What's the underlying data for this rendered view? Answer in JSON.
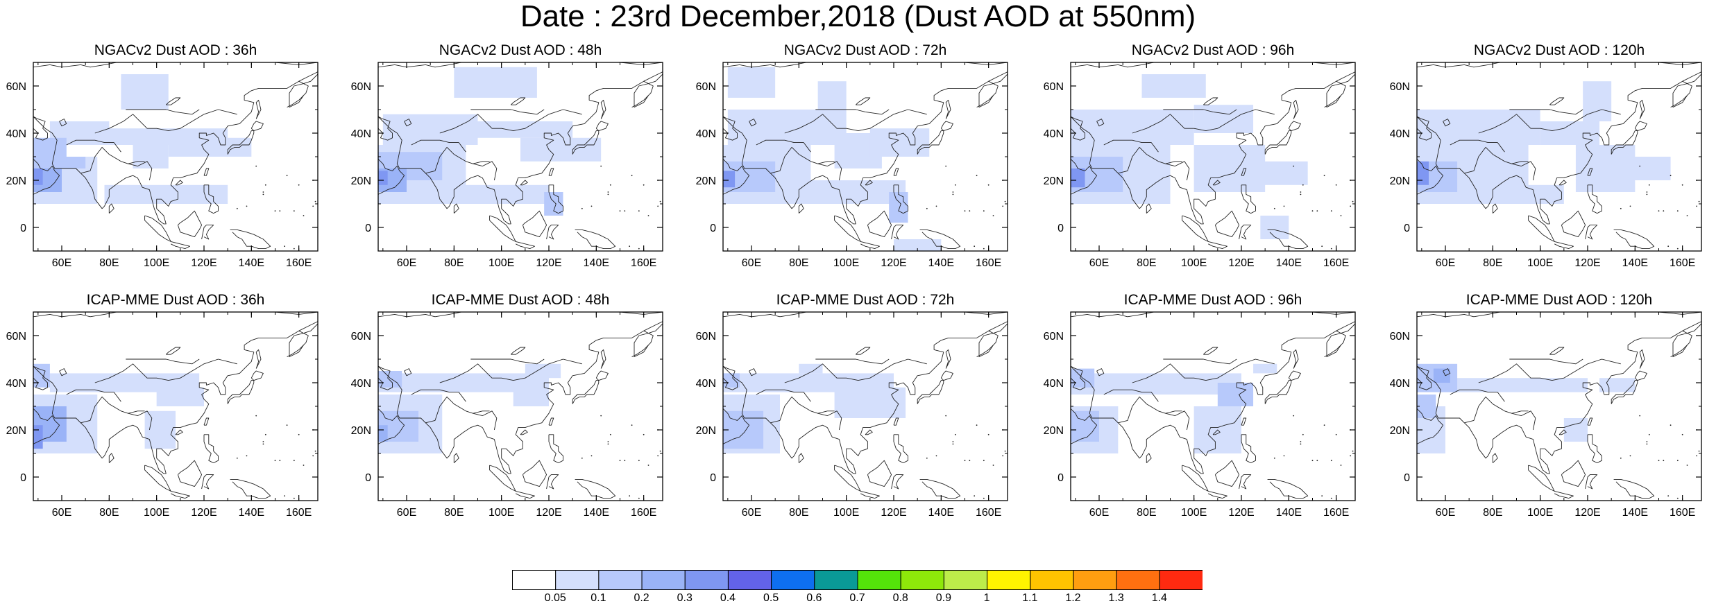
{
  "title": "Date : 23rd December,2018 (Dust AOD at 550nm)",
  "axes": {
    "lon_ticks": [
      "60E",
      "80E",
      "100E",
      "120E",
      "140E",
      "160E"
    ],
    "lon_values": [
      60,
      80,
      100,
      120,
      140,
      160
    ],
    "lat_ticks": [
      "60N",
      "40N",
      "20N",
      "0"
    ],
    "lat_values": [
      60,
      40,
      20,
      0
    ],
    "lon_range": [
      48,
      168
    ],
    "lat_range": [
      -10,
      70
    ]
  },
  "colorbar": {
    "labels": [
      "0.05",
      "0.1",
      "0.2",
      "0.3",
      "0.4",
      "0.5",
      "0.6",
      "0.7",
      "0.8",
      "0.9",
      "1",
      "1.1",
      "1.2",
      "1.3",
      "1.4"
    ],
    "colors": [
      "#ffffff",
      "#d4dffc",
      "#b7c9fb",
      "#9ab3f7",
      "#7f97f2",
      "#6363ea",
      "#0e6ff0",
      "#0a9a97",
      "#54e40a",
      "#8ee80a",
      "#bdec4a",
      "#fff400",
      "#ffc400",
      "#ff9e10",
      "#ff7010",
      "#ff2a10"
    ]
  },
  "panels": [
    {
      "title": "NGACv2 Dust AOD : 36h",
      "model": "NGACv2",
      "lead": "36h",
      "dust": [
        {
          "lat": [
            25,
            30
          ],
          "lon": [
            48,
            70
          ],
          "v": 0.15
        },
        {
          "lat": [
            28,
            38
          ],
          "lon": [
            48,
            62
          ],
          "v": 0.15
        },
        {
          "lat": [
            15,
            25
          ],
          "lon": [
            48,
            60
          ],
          "v": 0.25
        },
        {
          "lat": [
            18,
            25
          ],
          "lon": [
            48,
            52
          ],
          "v": 0.35
        },
        {
          "lat": [
            10,
            30
          ],
          "lon": [
            48,
            75
          ],
          "v": 0.08
        },
        {
          "lat": [
            35,
            45
          ],
          "lon": [
            55,
            80
          ],
          "v": 0.08
        },
        {
          "lat": [
            35,
            42
          ],
          "lon": [
            78,
            130
          ],
          "v": 0.08
        },
        {
          "lat": [
            50,
            65
          ],
          "lon": [
            85,
            105
          ],
          "v": 0.08
        },
        {
          "lat": [
            10,
            18
          ],
          "lon": [
            78,
            130
          ],
          "v": 0.08
        },
        {
          "lat": [
            30,
            38
          ],
          "lon": [
            105,
            140
          ],
          "v": 0.08
        },
        {
          "lat": [
            25,
            35
          ],
          "lon": [
            90,
            105
          ],
          "v": 0.08
        }
      ]
    },
    {
      "title": "NGACv2 Dust AOD : 48h",
      "model": "NGACv2",
      "lead": "48h",
      "dust": [
        {
          "lat": [
            20,
            32
          ],
          "lon": [
            48,
            75
          ],
          "v": 0.15
        },
        {
          "lat": [
            15,
            25
          ],
          "lon": [
            48,
            60
          ],
          "v": 0.25
        },
        {
          "lat": [
            18,
            24
          ],
          "lon": [
            48,
            52
          ],
          "v": 0.35
        },
        {
          "lat": [
            10,
            35
          ],
          "lon": [
            48,
            85
          ],
          "v": 0.08
        },
        {
          "lat": [
            35,
            48
          ],
          "lon": [
            50,
            90
          ],
          "v": 0.08
        },
        {
          "lat": [
            38,
            45
          ],
          "lon": [
            88,
            130
          ],
          "v": 0.08
        },
        {
          "lat": [
            55,
            68
          ],
          "lon": [
            80,
            115
          ],
          "v": 0.08
        },
        {
          "lat": [
            10,
            18
          ],
          "lon": [
            78,
            120
          ],
          "v": 0.08
        },
        {
          "lat": [
            28,
            38
          ],
          "lon": [
            108,
            142
          ],
          "v": 0.08
        },
        {
          "lat": [
            5,
            15
          ],
          "lon": [
            118,
            126
          ],
          "v": 0.15
        }
      ]
    },
    {
      "title": "NGACv2 Dust AOD : 72h",
      "model": "NGACv2",
      "lead": "72h",
      "dust": [
        {
          "lat": [
            15,
            28
          ],
          "lon": [
            48,
            70
          ],
          "v": 0.15
        },
        {
          "lat": [
            17,
            24
          ],
          "lon": [
            48,
            53
          ],
          "v": 0.3
        },
        {
          "lat": [
            10,
            35
          ],
          "lon": [
            48,
            85
          ],
          "v": 0.08
        },
        {
          "lat": [
            35,
            50
          ],
          "lon": [
            50,
            100
          ],
          "v": 0.08
        },
        {
          "lat": [
            55,
            68
          ],
          "lon": [
            50,
            70
          ],
          "v": 0.08
        },
        {
          "lat": [
            50,
            62
          ],
          "lon": [
            88,
            100
          ],
          "v": 0.08
        },
        {
          "lat": [
            25,
            40
          ],
          "lon": [
            95,
            115
          ],
          "v": 0.08
        },
        {
          "lat": [
            10,
            20
          ],
          "lon": [
            80,
            125
          ],
          "v": 0.08
        },
        {
          "lat": [
            30,
            42
          ],
          "lon": [
            110,
            135
          ],
          "v": 0.08
        },
        {
          "lat": [
            2,
            15
          ],
          "lon": [
            118,
            126
          ],
          "v": 0.15
        },
        {
          "lat": [
            -10,
            -5
          ],
          "lon": [
            120,
            140
          ],
          "v": 0.08
        }
      ]
    },
    {
      "title": "NGACv2 Dust AOD : 96h",
      "model": "NGACv2",
      "lead": "96h",
      "dust": [
        {
          "lat": [
            15,
            30
          ],
          "lon": [
            48,
            70
          ],
          "v": 0.15
        },
        {
          "lat": [
            17,
            25
          ],
          "lon": [
            48,
            54
          ],
          "v": 0.3
        },
        {
          "lat": [
            10,
            35
          ],
          "lon": [
            48,
            90
          ],
          "v": 0.08
        },
        {
          "lat": [
            35,
            50
          ],
          "lon": [
            48,
            100
          ],
          "v": 0.08
        },
        {
          "lat": [
            55,
            65
          ],
          "lon": [
            78,
            105
          ],
          "v": 0.08
        },
        {
          "lat": [
            40,
            52
          ],
          "lon": [
            100,
            125
          ],
          "v": 0.08
        },
        {
          "lat": [
            15,
            35
          ],
          "lon": [
            100,
            130
          ],
          "v": 0.08
        },
        {
          "lat": [
            18,
            28
          ],
          "lon": [
            125,
            148
          ],
          "v": 0.08
        },
        {
          "lat": [
            -5,
            5
          ],
          "lon": [
            128,
            140
          ],
          "v": 0.08
        }
      ]
    },
    {
      "title": "NGACv2 Dust AOD : 120h",
      "model": "NGACv2",
      "lead": "120h",
      "dust": [
        {
          "lat": [
            15,
            28
          ],
          "lon": [
            48,
            65
          ],
          "v": 0.15
        },
        {
          "lat": [
            18,
            28
          ],
          "lon": [
            48,
            53
          ],
          "v": 0.35
        },
        {
          "lat": [
            10,
            35
          ],
          "lon": [
            48,
            95
          ],
          "v": 0.08
        },
        {
          "lat": [
            35,
            50
          ],
          "lon": [
            48,
            100
          ],
          "v": 0.08
        },
        {
          "lat": [
            35,
            45
          ],
          "lon": [
            100,
            125
          ],
          "v": 0.08
        },
        {
          "lat": [
            15,
            35
          ],
          "lon": [
            115,
            140
          ],
          "v": 0.08
        },
        {
          "lat": [
            45,
            62
          ],
          "lon": [
            118,
            130
          ],
          "v": 0.08
        },
        {
          "lat": [
            20,
            30
          ],
          "lon": [
            130,
            155
          ],
          "v": 0.08
        },
        {
          "lat": [
            10,
            18
          ],
          "lon": [
            85,
            110
          ],
          "v": 0.08
        }
      ]
    },
    {
      "title": "ICAP-MME Dust AOD : 36h",
      "model": "ICAP-MME",
      "lead": "36h",
      "dust": [
        {
          "lat": [
            15,
            30
          ],
          "lon": [
            48,
            62
          ],
          "v": 0.2
        },
        {
          "lat": [
            12,
            22
          ],
          "lon": [
            48,
            52
          ],
          "v": 0.3
        },
        {
          "lat": [
            10,
            35
          ],
          "lon": [
            48,
            75
          ],
          "v": 0.08
        },
        {
          "lat": [
            38,
            48
          ],
          "lon": [
            48,
            55
          ],
          "v": 0.15
        },
        {
          "lat": [
            36,
            44
          ],
          "lon": [
            55,
            118
          ],
          "v": 0.08
        },
        {
          "lat": [
            30,
            38
          ],
          "lon": [
            100,
            120
          ],
          "v": 0.08
        },
        {
          "lat": [
            12,
            28
          ],
          "lon": [
            95,
            108
          ],
          "v": 0.08
        }
      ]
    },
    {
      "title": "ICAP-MME Dust AOD : 48h",
      "model": "ICAP-MME",
      "lead": "48h",
      "dust": [
        {
          "lat": [
            15,
            28
          ],
          "lon": [
            48,
            65
          ],
          "v": 0.15
        },
        {
          "lat": [
            15,
            22
          ],
          "lon": [
            48,
            52
          ],
          "v": 0.25
        },
        {
          "lat": [
            10,
            35
          ],
          "lon": [
            48,
            75
          ],
          "v": 0.08
        },
        {
          "lat": [
            36,
            44
          ],
          "lon": [
            48,
            120
          ],
          "v": 0.08
        },
        {
          "lat": [
            38,
            45
          ],
          "lon": [
            48,
            58
          ],
          "v": 0.15
        },
        {
          "lat": [
            30,
            38
          ],
          "lon": [
            105,
            120
          ],
          "v": 0.08
        },
        {
          "lat": [
            42,
            48
          ],
          "lon": [
            110,
            125
          ],
          "v": 0.08
        }
      ]
    },
    {
      "title": "ICAP-MME Dust AOD : 72h",
      "model": "ICAP-MME",
      "lead": "72h",
      "dust": [
        {
          "lat": [
            12,
            28
          ],
          "lon": [
            48,
            65
          ],
          "v": 0.15
        },
        {
          "lat": [
            10,
            35
          ],
          "lon": [
            48,
            72
          ],
          "v": 0.08
        },
        {
          "lat": [
            36,
            44
          ],
          "lon": [
            48,
            120
          ],
          "v": 0.08
        },
        {
          "lat": [
            38,
            44
          ],
          "lon": [
            48,
            55
          ],
          "v": 0.15
        },
        {
          "lat": [
            25,
            38
          ],
          "lon": [
            95,
            125
          ],
          "v": 0.08
        },
        {
          "lat": [
            44,
            48
          ],
          "lon": [
            80,
            90
          ],
          "v": 0.08
        }
      ]
    },
    {
      "title": "ICAP-MME Dust AOD : 96h",
      "model": "ICAP-MME",
      "lead": "96h",
      "dust": [
        {
          "lat": [
            15,
            28
          ],
          "lon": [
            48,
            60
          ],
          "v": 0.15
        },
        {
          "lat": [
            10,
            30
          ],
          "lon": [
            48,
            68
          ],
          "v": 0.08
        },
        {
          "lat": [
            38,
            46
          ],
          "lon": [
            48,
            58
          ],
          "v": 0.15
        },
        {
          "lat": [
            35,
            44
          ],
          "lon": [
            48,
            120
          ],
          "v": 0.08
        },
        {
          "lat": [
            30,
            40
          ],
          "lon": [
            110,
            125
          ],
          "v": 0.15
        },
        {
          "lat": [
            10,
            30
          ],
          "lon": [
            100,
            120
          ],
          "v": 0.08
        },
        {
          "lat": [
            44,
            48
          ],
          "lon": [
            125,
            135
          ],
          "v": 0.08
        }
      ]
    },
    {
      "title": "ICAP-MME Dust AOD : 120h",
      "model": "ICAP-MME",
      "lead": "120h",
      "dust": [
        {
          "lat": [
            36,
            48
          ],
          "lon": [
            48,
            65
          ],
          "v": 0.15
        },
        {
          "lat": [
            40,
            46
          ],
          "lon": [
            55,
            62
          ],
          "v": 0.25
        },
        {
          "lat": [
            25,
            35
          ],
          "lon": [
            48,
            56
          ],
          "v": 0.15
        },
        {
          "lat": [
            10,
            30
          ],
          "lon": [
            48,
            60
          ],
          "v": 0.08
        },
        {
          "lat": [
            36,
            42
          ],
          "lon": [
            62,
            120
          ],
          "v": 0.08
        },
        {
          "lat": [
            36,
            42
          ],
          "lon": [
            125,
            140
          ],
          "v": 0.08
        },
        {
          "lat": [
            15,
            25
          ],
          "lon": [
            110,
            120
          ],
          "v": 0.08
        }
      ]
    }
  ]
}
